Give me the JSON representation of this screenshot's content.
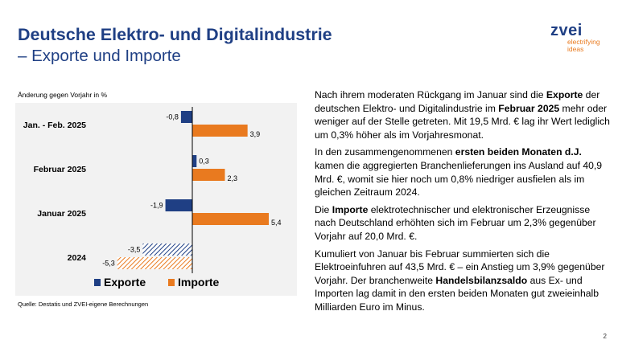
{
  "header": {
    "title": "Deutsche Elektro- und Digitalindustrie",
    "subtitle": "– Exporte und Importe"
  },
  "logo": {
    "word": "zvei",
    "tag_line1": "electrifying",
    "tag_line2": "ideas"
  },
  "chart_data": {
    "type": "bar",
    "orientation": "horizontal",
    "title": "",
    "ylabel": "Änderung gegen Vorjahr in %",
    "categories": [
      "Jan. - Feb. 2025",
      "Februar 2025",
      "Januar 2025",
      "2024"
    ],
    "series": [
      {
        "name": "Exporte",
        "values": [
          -0.8,
          0.3,
          -1.9,
          -3.5
        ],
        "labels": [
          "-0,8",
          "0,3",
          "-1,9",
          "-3,5"
        ],
        "color": "#1f3f84",
        "hatched_category": "2024"
      },
      {
        "name": "Importe",
        "values": [
          3.9,
          2.3,
          5.4,
          -5.3
        ],
        "labels": [
          "3,9",
          "2,3",
          "5,4",
          "-5,3"
        ],
        "color": "#e97a1f",
        "hatched_category": "2024"
      }
    ],
    "xlim": [
      -6,
      6
    ],
    "grid": false,
    "legend": "bottom",
    "source": "Quelle: Destatis und ZVEI-eigene Berechnungen"
  },
  "text_panel": {
    "paragraphs": [
      [
        {
          "t": "Nach ihrem moderaten Rückgang im Januar sind die "
        },
        {
          "t": "Exporte",
          "b": true
        },
        {
          "t": " der deutschen Elektro- und Digitalindustrie im "
        },
        {
          "t": "Februar 2025",
          "b": true
        },
        {
          "t": " mehr oder weniger auf der Stelle getreten. Mit 19,5 Mrd. € lag ihr Wert lediglich um 0,3% höher als im Vorjahresmonat."
        }
      ],
      [
        {
          "t": "In den zusammengenommenen "
        },
        {
          "t": "ersten beiden Monaten d.J.",
          "b": true
        },
        {
          "t": " kamen die aggregierten Branchenlieferungen ins Ausland auf 40,9 Mrd. €, womit sie hier noch um 0,8% niedriger ausfielen als im gleichen Zeitraum 2024."
        }
      ],
      [
        {
          "t": "Die "
        },
        {
          "t": "Importe",
          "b": true
        },
        {
          "t": " elektrotechnischer und elektronischer Erzeugnisse nach Deutschland erhöhten sich im Februar um 2,3% gegenüber Vorjahr auf 20,0 Mrd. €."
        }
      ],
      [
        {
          "t": "Kumuliert von Januar bis Februar summierten sich die Elektroeinfuhren auf 43,5 Mrd. € – ein Anstieg um 3,9% gegenüber Vorjahr. Der branchenweite "
        },
        {
          "t": "Handelsbilanzsaldo",
          "b": true
        },
        {
          "t": " aus Ex- und Importen lag damit in den ersten beiden Monaten gut zweieinhalb Milliarden Euro im Minus."
        }
      ]
    ]
  },
  "page_number": "2"
}
